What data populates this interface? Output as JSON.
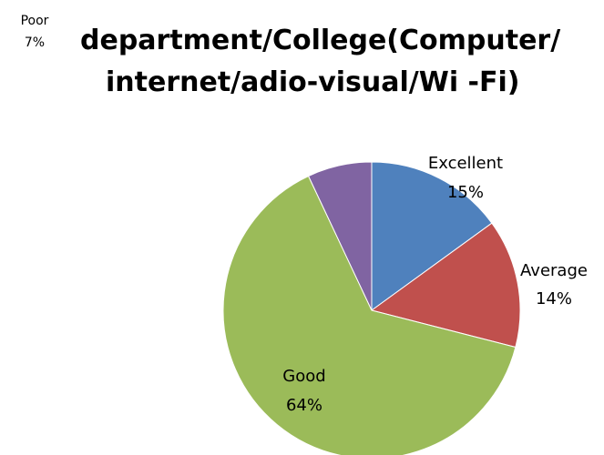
{
  "chart_data": {
    "type": "pie",
    "title_lines": [
      "department/College(Computer/",
      "internet/adio-visual/Wi -Fi)"
    ],
    "slices": [
      {
        "label": "Excellent",
        "value": 15,
        "display": "15%",
        "color": "#4F81BD"
      },
      {
        "label": "Average",
        "value": 14,
        "display": "14%",
        "color": "#C0504D"
      },
      {
        "label": "Good",
        "value": 64,
        "display": "64%",
        "color": "#9BBB59"
      },
      {
        "label": "Poor",
        "value": 7,
        "display": "7%",
        "color": "#8064A2"
      }
    ],
    "start_angle": "12 o'clock",
    "direction": "clockwise",
    "legend": "none"
  }
}
